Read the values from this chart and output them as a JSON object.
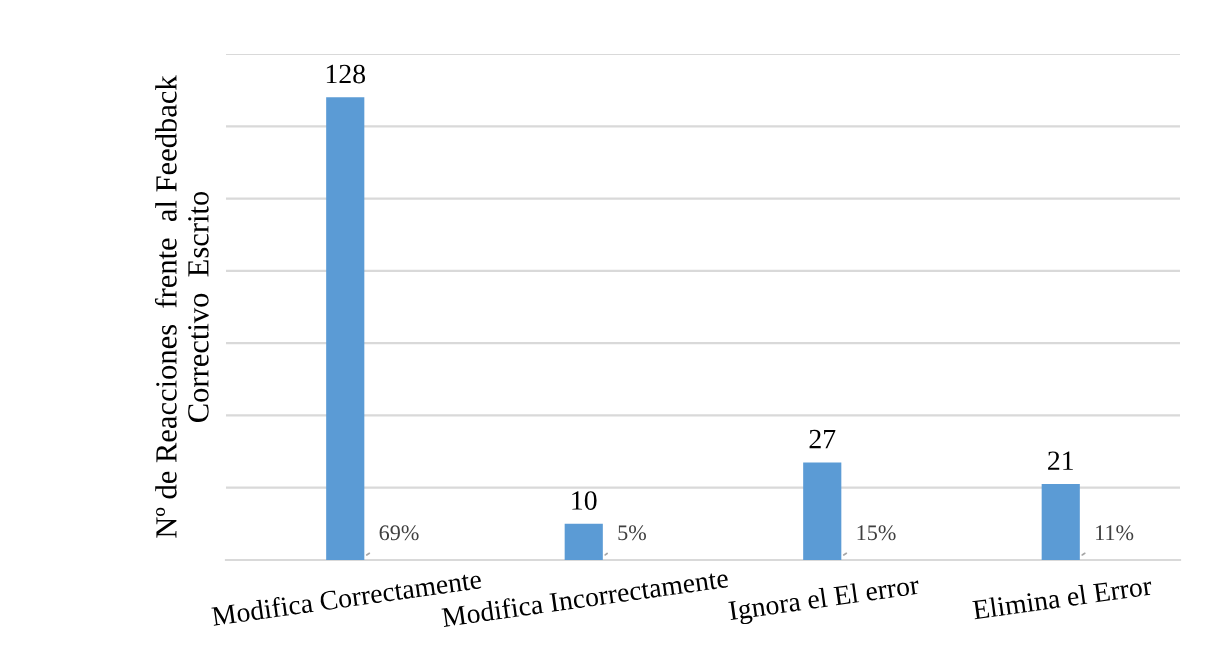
{
  "chart_data": {
    "type": "bar",
    "ylabel": "Nº de Reacciones  frente  al Feedback\nCorrectivo  Escrito",
    "categories": [
      "Modifica Correctamente",
      "Modifica Incorrectamente",
      "Ignora el El error",
      "Elimina el Error"
    ],
    "values": [
      128,
      10,
      27,
      21
    ],
    "color": "#5b9bd5",
    "data_labels": true,
    "ylim": [
      0,
      140
    ],
    "yticks": [
      {
        "value": 0,
        "label": null
      },
      {
        "value": 20,
        "label": null
      },
      {
        "value": 40,
        "label": null
      },
      {
        "value": 60,
        "label": null
      },
      {
        "value": 80,
        "label": null
      },
      {
        "value": 100,
        "label": null
      },
      {
        "value": 120,
        "label": null
      },
      {
        "value": 140,
        "label": null
      }
    ],
    "grid": "y",
    "tick_labels": "x",
    "annotations": [
      "69%",
      "5%",
      "15%",
      "11%"
    ]
  }
}
